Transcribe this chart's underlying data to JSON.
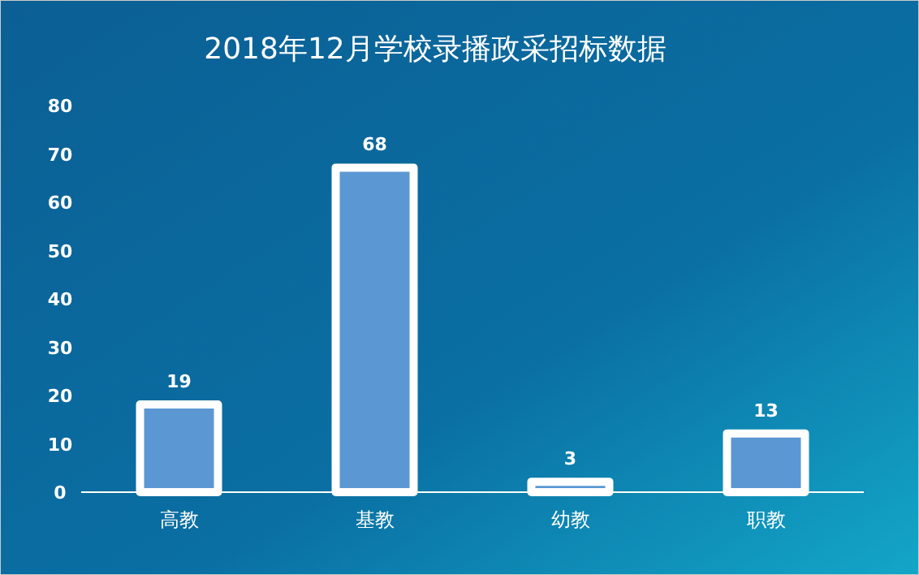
{
  "chart_data": {
    "type": "bar",
    "title": "2018年12月学校录播政采招标数据",
    "categories": [
      "高教",
      "基教",
      "幼教",
      "职教"
    ],
    "values": [
      19,
      68,
      3,
      13
    ],
    "color": "#5b97d3",
    "ylim": [
      0,
      80
    ],
    "yticks": [
      0,
      10,
      20,
      30,
      40,
      50,
      60,
      70,
      80
    ],
    "grid": false,
    "data_labels": true
  }
}
